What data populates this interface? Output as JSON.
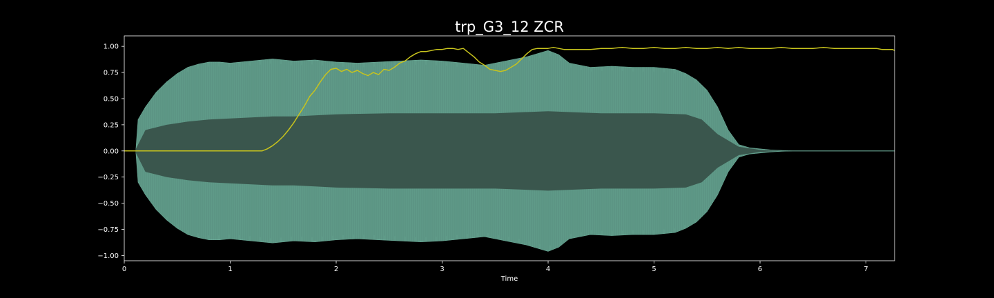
{
  "chart_data": {
    "type": "line",
    "title": "trp_G3_12 ZCR",
    "xlabel": "Time",
    "ylabel": "",
    "xlim": [
      0,
      7.27
    ],
    "ylim": [
      -1.05,
      1.1
    ],
    "grid": false,
    "background": "#000000",
    "colors": {
      "waveform_outer": "#5f9a88",
      "waveform_inner": "#3a564d",
      "waveform_line": "#6aa996",
      "zcr_line": "#c8c41d",
      "axis": "#ffffff",
      "text": "#ffffff"
    },
    "x_ticks": [
      0,
      1,
      2,
      3,
      4,
      5,
      6,
      7
    ],
    "x_tick_labels": [
      "0",
      "1",
      "2",
      "3",
      "4",
      "5",
      "6",
      "7"
    ],
    "y_ticks": [
      1.0,
      0.75,
      0.5,
      0.25,
      0.0,
      -0.25,
      -0.5,
      -0.75,
      -1.0
    ],
    "y_tick_labels": [
      "1.00",
      "0.75",
      "0.50",
      "0.25",
      "0.00",
      "−0.25",
      "−0.50",
      "−0.75",
      "−1.00"
    ],
    "series": [
      {
        "name": "Waveform envelope (outer)",
        "kind": "envelope",
        "x": [
          0.11,
          0.13,
          0.2,
          0.3,
          0.4,
          0.5,
          0.6,
          0.7,
          0.8,
          0.9,
          1.0,
          1.2,
          1.4,
          1.6,
          1.8,
          2.0,
          2.2,
          2.4,
          2.6,
          2.8,
          3.0,
          3.2,
          3.4,
          3.6,
          3.8,
          4.0,
          4.1,
          4.2,
          4.4,
          4.6,
          4.8,
          5.0,
          5.2,
          5.3,
          5.4,
          5.5,
          5.6,
          5.7,
          5.8,
          5.9,
          6.0,
          6.1,
          6.2,
          6.3
        ],
        "upper": [
          0.02,
          0.3,
          0.42,
          0.56,
          0.66,
          0.74,
          0.8,
          0.83,
          0.85,
          0.85,
          0.84,
          0.86,
          0.88,
          0.86,
          0.87,
          0.85,
          0.84,
          0.85,
          0.86,
          0.87,
          0.86,
          0.84,
          0.82,
          0.86,
          0.9,
          0.96,
          0.92,
          0.84,
          0.8,
          0.81,
          0.8,
          0.8,
          0.78,
          0.74,
          0.68,
          0.58,
          0.42,
          0.2,
          0.06,
          0.03,
          0.02,
          0.01,
          0.005,
          0.0
        ],
        "lower": [
          -0.02,
          -0.3,
          -0.42,
          -0.56,
          -0.66,
          -0.74,
          -0.8,
          -0.83,
          -0.85,
          -0.85,
          -0.84,
          -0.86,
          -0.88,
          -0.86,
          -0.87,
          -0.85,
          -0.84,
          -0.85,
          -0.86,
          -0.87,
          -0.86,
          -0.84,
          -0.82,
          -0.86,
          -0.9,
          -0.96,
          -0.92,
          -0.84,
          -0.8,
          -0.81,
          -0.8,
          -0.8,
          -0.78,
          -0.74,
          -0.68,
          -0.58,
          -0.42,
          -0.2,
          -0.06,
          -0.03,
          -0.02,
          -0.01,
          -0.005,
          0.0
        ]
      },
      {
        "name": "Waveform envelope (inner)",
        "kind": "envelope",
        "x": [
          0.11,
          0.2,
          0.4,
          0.6,
          0.8,
          1.0,
          1.2,
          1.4,
          1.6,
          1.8,
          2.0,
          2.5,
          3.0,
          3.5,
          4.0,
          4.5,
          5.0,
          5.3,
          5.45,
          5.6,
          5.8,
          6.0,
          6.2
        ],
        "upper": [
          0.02,
          0.2,
          0.25,
          0.28,
          0.3,
          0.31,
          0.32,
          0.33,
          0.33,
          0.34,
          0.35,
          0.36,
          0.36,
          0.36,
          0.38,
          0.36,
          0.36,
          0.35,
          0.3,
          0.16,
          0.04,
          0.01,
          0.0
        ],
        "lower": [
          -0.02,
          -0.2,
          -0.25,
          -0.28,
          -0.3,
          -0.31,
          -0.32,
          -0.33,
          -0.33,
          -0.34,
          -0.35,
          -0.36,
          -0.36,
          -0.36,
          -0.38,
          -0.36,
          -0.36,
          -0.35,
          -0.3,
          -0.16,
          -0.04,
          -0.01,
          0.0
        ]
      },
      {
        "name": "ZCR",
        "kind": "line",
        "x": [
          0.0,
          1.3,
          1.35,
          1.4,
          1.45,
          1.5,
          1.55,
          1.6,
          1.65,
          1.7,
          1.75,
          1.8,
          1.85,
          1.9,
          1.95,
          2.0,
          2.05,
          2.1,
          2.15,
          2.2,
          2.25,
          2.3,
          2.35,
          2.4,
          2.45,
          2.5,
          2.55,
          2.6,
          2.65,
          2.7,
          2.75,
          2.8,
          2.85,
          2.9,
          2.95,
          3.0,
          3.05,
          3.1,
          3.15,
          3.2,
          3.25,
          3.3,
          3.35,
          3.4,
          3.45,
          3.5,
          3.55,
          3.6,
          3.65,
          3.7,
          3.75,
          3.8,
          3.85,
          3.9,
          3.95,
          4.0,
          4.05,
          4.1,
          4.15,
          4.2,
          4.3,
          4.4,
          4.5,
          4.6,
          4.7,
          4.8,
          4.9,
          5.0,
          5.1,
          5.2,
          5.3,
          5.4,
          5.5,
          5.6,
          5.7,
          5.8,
          5.9,
          6.0,
          6.1,
          6.2,
          6.3,
          6.4,
          6.5,
          6.6,
          6.7,
          6.8,
          6.9,
          7.0,
          7.1,
          7.15,
          7.2,
          7.25,
          7.27
        ],
        "y": [
          0.0,
          0.0,
          0.02,
          0.05,
          0.09,
          0.14,
          0.2,
          0.27,
          0.35,
          0.43,
          0.52,
          0.58,
          0.66,
          0.73,
          0.78,
          0.79,
          0.76,
          0.78,
          0.75,
          0.77,
          0.74,
          0.72,
          0.75,
          0.73,
          0.78,
          0.77,
          0.8,
          0.84,
          0.86,
          0.9,
          0.93,
          0.95,
          0.95,
          0.96,
          0.97,
          0.97,
          0.98,
          0.98,
          0.97,
          0.98,
          0.94,
          0.9,
          0.85,
          0.82,
          0.78,
          0.77,
          0.76,
          0.77,
          0.8,
          0.83,
          0.88,
          0.93,
          0.97,
          0.98,
          0.98,
          0.98,
          0.99,
          0.98,
          0.97,
          0.97,
          0.97,
          0.97,
          0.98,
          0.98,
          0.99,
          0.98,
          0.98,
          0.99,
          0.98,
          0.98,
          0.99,
          0.98,
          0.98,
          0.99,
          0.98,
          0.99,
          0.98,
          0.98,
          0.98,
          0.99,
          0.98,
          0.98,
          0.98,
          0.99,
          0.98,
          0.98,
          0.98,
          0.98,
          0.98,
          0.97,
          0.97,
          0.97,
          0.96
        ]
      }
    ]
  }
}
